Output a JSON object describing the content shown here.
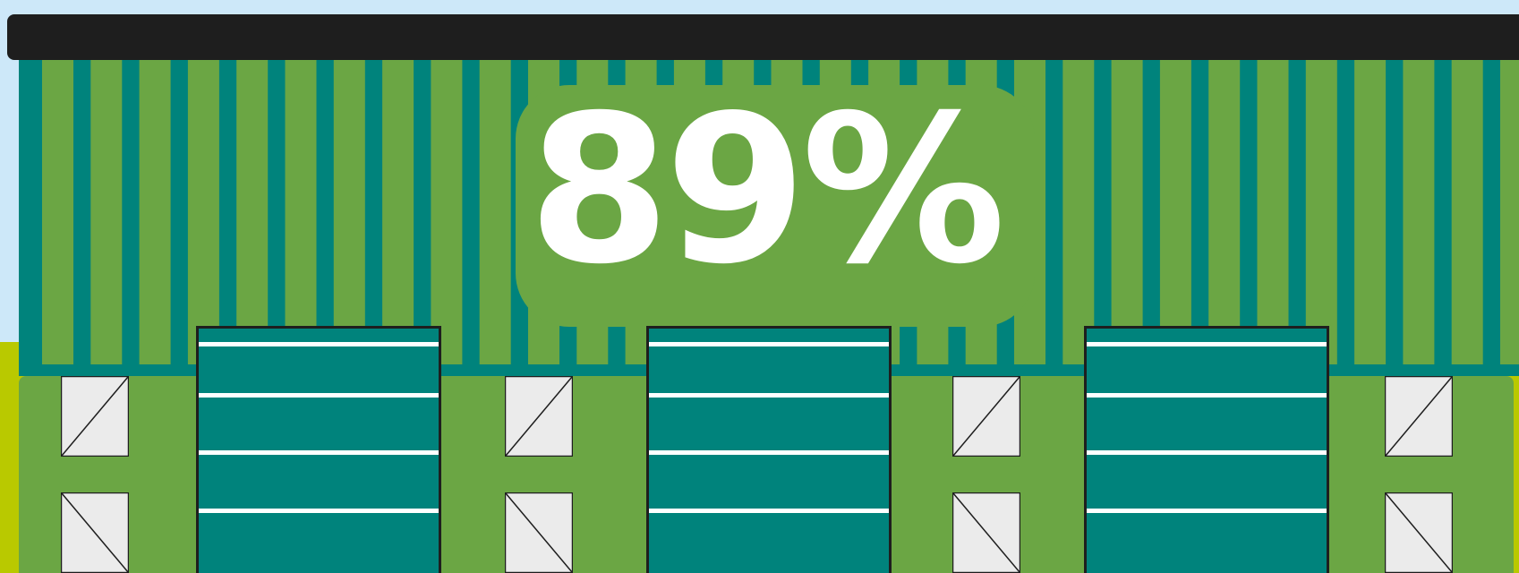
{
  "colors": {
    "sky": "#cde8f9",
    "ground": "#b9c900",
    "roof": "#1e1e1e",
    "wall_green": "#6ba644",
    "wall_teal": "#00837c",
    "door": "#00837c",
    "door_lines": "#ffffff",
    "window_fill": "#ebebeb",
    "window_stroke": "#1e1e1e",
    "text": "#ffffff"
  },
  "headline": {
    "text": "89%",
    "value": 89
  },
  "building": {
    "doors": [
      {
        "name": "loading-door-1",
        "slat_count": 4
      },
      {
        "name": "loading-door-2",
        "slat_count": 4
      },
      {
        "name": "loading-door-3",
        "slat_count": 4
      }
    ],
    "windows_per_column": 2,
    "window_columns": 4
  }
}
